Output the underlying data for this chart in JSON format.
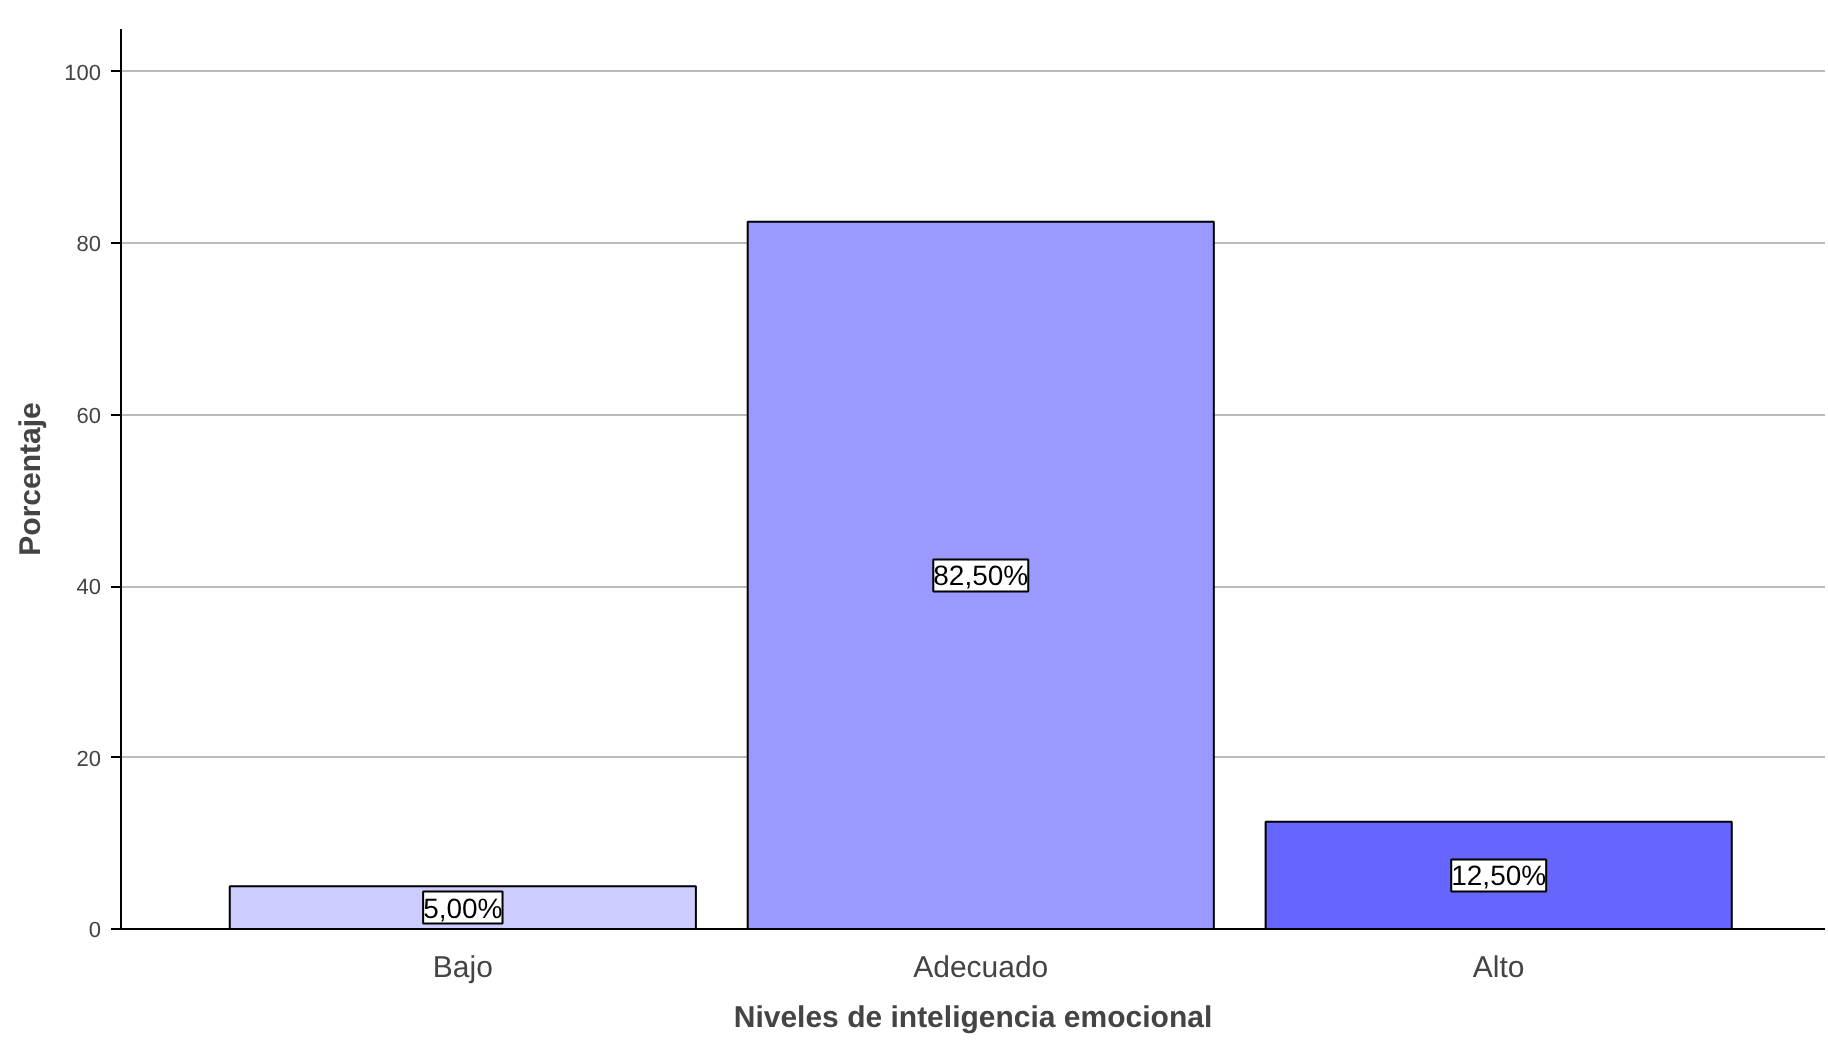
{
  "chart_data": {
    "type": "bar",
    "xlabel": "Niveles de inteligencia emocional",
    "ylabel": "Porcentaje",
    "categories": [
      "Bajo",
      "Adecuado",
      "Alto"
    ],
    "values": [
      5.0,
      82.5,
      12.5
    ],
    "colors": [
      "#ccccff",
      "#9999ff",
      "#6666ff"
    ],
    "value_labels": [
      "5,00%",
      "82,50%",
      "12,50%"
    ],
    "ylim": [
      0,
      105
    ],
    "yticks": [
      0,
      20,
      40,
      60,
      80,
      100
    ],
    "grid": "y"
  }
}
